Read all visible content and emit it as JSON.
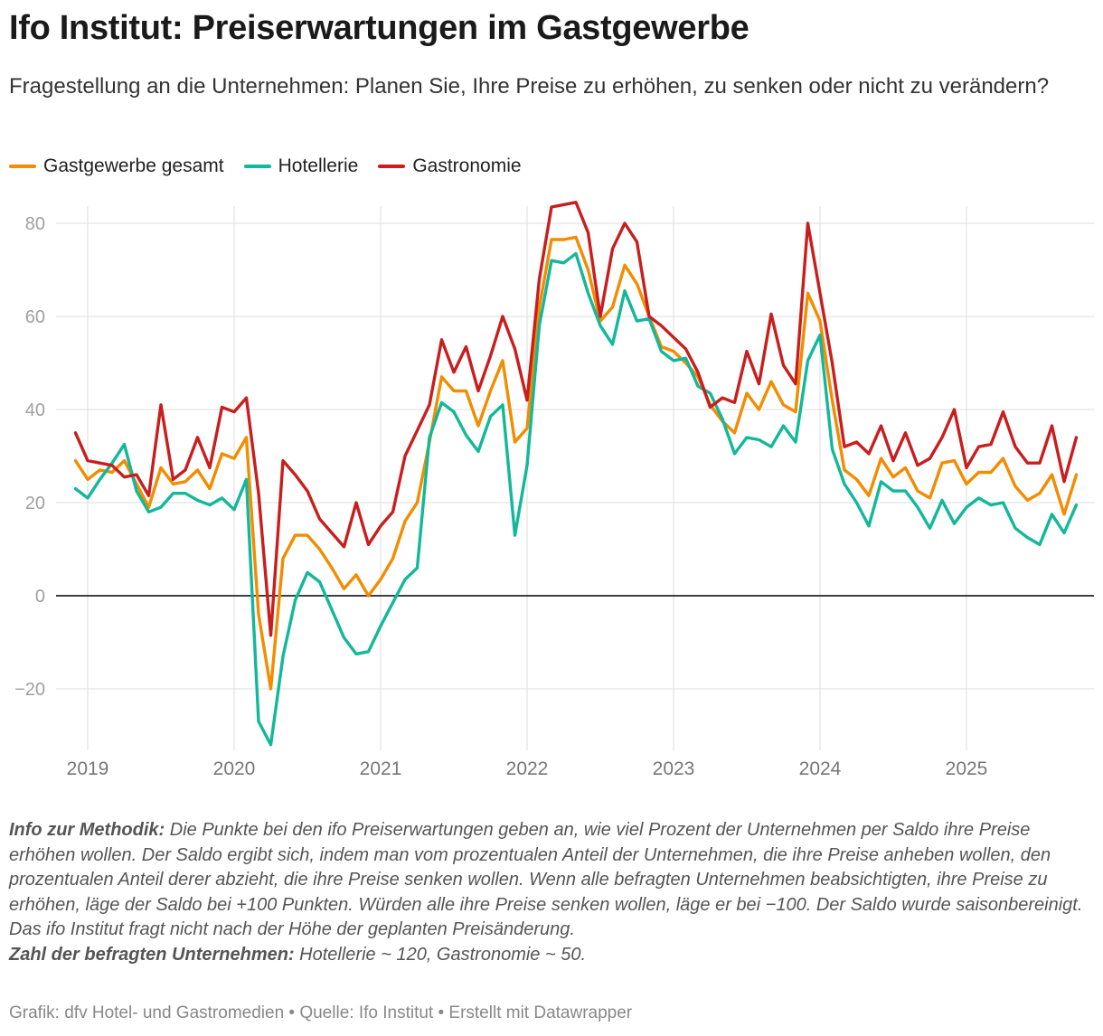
{
  "title": "Ifo Institut: Preiserwartungen im Gastgewerbe",
  "subtitle": "Fragestellung an die Unternehmen: Planen Sie, Ihre Preise zu erhöhen, zu senken oder nicht zu verändern?",
  "legend": [
    {
      "label": "Gastgewerbe gesamt",
      "color": "#f28c00"
    },
    {
      "label": "Hotellerie",
      "color": "#13b89a"
    },
    {
      "label": "Gastronomie",
      "color": "#c81e1e"
    }
  ],
  "notes": {
    "method_label": "Info zur Methodik:",
    "method_text": " Die Punkte bei den ifo Preiserwartungen geben an, wie viel Prozent der Unternehmen per Saldo ihre Preise erhöhen wollen. Der Saldo ergibt sich, indem man vom prozentualen Anteil der Unternehmen, die ihre Preise anheben wollen, den prozentualen Anteil derer abzieht, die ihre Preise senken wollen. Wenn alle befragten Unternehmen beabsichtigten, ihre Preise zu erhöhen, läge der Saldo bei +100 Punkten. Würden alle ihre Preise senken wollen, läge er bei −100. Der Saldo wurde saisonbereinigt. Das ifo Institut fragt nicht nach der Höhe der geplanten Preisänderung.",
    "count_label": "Zahl der befragten Unternehmen:",
    "count_text": " Hotellerie ~ 120, Gastronomie ~ 50."
  },
  "source": "Grafik: dfv Hotel- und Gastromedien • Quelle: Ifo Institut • Erstellt mit Datawrapper",
  "chart_data": {
    "type": "line",
    "x_start": "2018-12",
    "x_step": "month",
    "x_ticks": [
      "2019",
      "2020",
      "2021",
      "2022",
      "2023",
      "2024",
      "2025"
    ],
    "y_ticks": [
      80,
      60,
      40,
      20,
      0,
      -20
    ],
    "y_tick_labels": [
      "80",
      "60",
      "40",
      "20",
      "0",
      "−20"
    ],
    "ylim": [
      -32,
      85
    ],
    "grid": true,
    "legend_position": "top-left",
    "series": [
      {
        "name": "Gastgewerbe gesamt",
        "color": "#f28c00",
        "values": [
          29,
          25,
          27,
          26.5,
          29,
          24,
          19,
          27.5,
          24,
          24.5,
          27,
          23,
          30.5,
          29.5,
          34,
          -4,
          -20,
          8,
          13,
          13,
          10,
          6,
          1.5,
          4.5,
          0,
          3.5,
          8,
          16,
          20,
          33,
          47,
          44,
          44,
          36.5,
          44,
          50.5,
          33,
          36,
          62,
          76.5,
          76.5,
          77,
          70,
          59,
          62,
          71,
          67,
          60,
          53.5,
          52.5,
          50,
          47,
          41,
          37.5,
          35,
          43.5,
          40,
          46,
          41,
          39.5,
          65,
          59,
          42,
          27,
          25,
          21.5,
          29.5,
          25.5,
          27.5,
          22.5,
          21,
          28.5,
          29,
          24,
          26.5,
          26.5,
          29.5,
          23.5,
          20.5,
          22,
          26,
          17.5,
          26
        ]
      },
      {
        "name": "Hotellerie",
        "color": "#13b89a",
        "values": [
          23,
          21,
          25,
          28.5,
          32.5,
          22.5,
          18,
          19,
          22,
          22,
          20.5,
          19.5,
          21,
          18.5,
          25,
          -27,
          -32,
          -13,
          -1,
          5,
          3,
          -3,
          -9,
          -12.5,
          -12,
          -6.5,
          -1.5,
          3.5,
          6,
          34,
          41.5,
          39.5,
          34.5,
          31,
          38.5,
          41,
          13,
          28,
          58,
          72,
          71.5,
          73.5,
          65,
          58,
          54,
          65.5,
          59,
          59.5,
          52.5,
          50.5,
          51,
          45,
          43.5,
          38,
          30.5,
          34,
          33.5,
          32,
          36.5,
          33,
          50.5,
          56,
          31.5,
          24,
          20,
          15,
          24.5,
          22.5,
          22.5,
          19,
          14.5,
          20.5,
          15.5,
          19,
          21,
          19.5,
          20,
          14.5,
          12.5,
          11,
          17.5,
          13.5,
          19.5
        ]
      },
      {
        "name": "Gastronomie",
        "color": "#c81e1e",
        "values": [
          35,
          29,
          28.5,
          28,
          25.5,
          26,
          21.5,
          41,
          25,
          27,
          34,
          27.5,
          40.5,
          39.5,
          42.5,
          22,
          -8.5,
          29,
          26,
          22.5,
          16.5,
          13.5,
          10.5,
          20,
          11,
          15,
          18,
          30,
          35.5,
          41,
          55,
          48,
          53.5,
          44,
          51.5,
          60,
          53,
          42,
          68,
          83.5,
          84,
          84.5,
          78,
          60,
          74.5,
          80,
          76,
          60,
          58,
          55.5,
          53,
          48,
          40.5,
          42.5,
          41.5,
          52.5,
          45.5,
          60.5,
          49.5,
          45.5,
          80,
          65,
          50,
          32,
          33,
          30.5,
          36.5,
          29,
          35,
          28,
          29.5,
          34,
          40,
          27.5,
          32,
          32.5,
          39.5,
          32,
          28.5,
          28.5,
          36.5,
          24.5,
          34
        ]
      }
    ]
  }
}
